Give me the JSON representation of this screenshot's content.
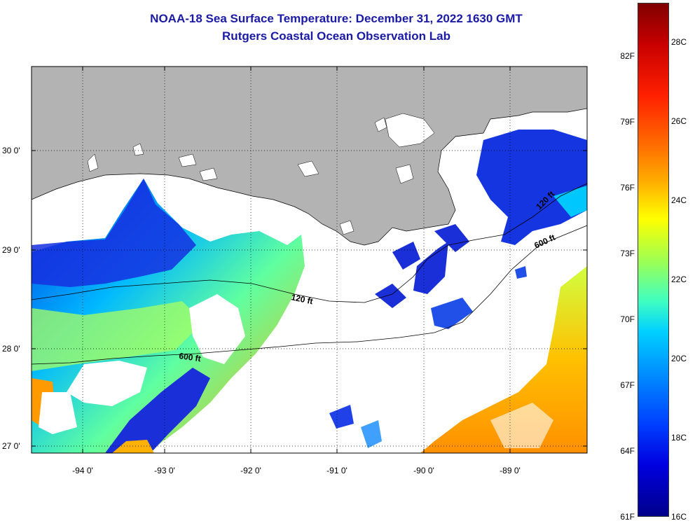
{
  "title": "NOAA-18 Sea Surface Temperature:  December 31, 2022 1630 GMT",
  "subtitle": "Rutgers Coastal Ocean Observation Lab",
  "map": {
    "lat_labels": [
      "30 0'",
      "29 0'",
      "28 0'",
      "27 0'"
    ],
    "lon_labels": [
      "-94 0'",
      "-93 0'",
      "-92 0'",
      "-91 0'",
      "-90 0'",
      "-89 0'"
    ],
    "contours": [
      "120 ft",
      "600 ft",
      "120 ft",
      "600 ft"
    ],
    "colors": {
      "land": "#b3b3b3",
      "no_data": "#ffffff"
    }
  },
  "colorbar": {
    "fahrenheit": [
      "82F",
      "79F",
      "76F",
      "73F",
      "70F",
      "67F",
      "64F",
      "61F"
    ],
    "celsius": [
      "28C",
      "26C",
      "24C",
      "22C",
      "20C",
      "18C",
      "16C"
    ]
  }
}
